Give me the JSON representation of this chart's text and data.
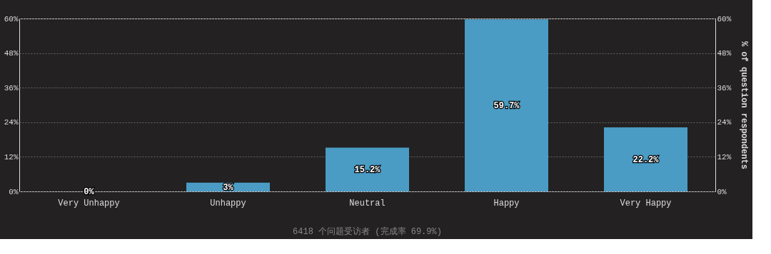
{
  "chart_data": {
    "type": "bar",
    "categories": [
      "Very Unhappy",
      "Unhappy",
      "Neutral",
      "Happy",
      "Very Happy"
    ],
    "values": [
      0,
      3,
      15.2,
      59.7,
      22.2
    ],
    "value_labels": [
      "0%",
      "3%",
      "15.2%",
      "59.7%",
      "22.2%"
    ],
    "color": "#4a9cc4",
    "ylim": [
      0,
      60
    ],
    "yticks": [
      {
        "value": 0,
        "label": "0%"
      },
      {
        "value": 12,
        "label": "12%"
      },
      {
        "value": 24,
        "label": "24%"
      },
      {
        "value": 36,
        "label": "36%"
      },
      {
        "value": 48,
        "label": "48%"
      },
      {
        "value": 60,
        "label": "60%"
      }
    ],
    "y2lim": [
      0,
      60
    ],
    "y2ticks": [
      {
        "value": 0,
        "label": "0%"
      },
      {
        "value": 12,
        "label": "12%"
      },
      {
        "value": 24,
        "label": "24%"
      },
      {
        "value": 36,
        "label": "36%"
      },
      {
        "value": 48,
        "label": "48%"
      },
      {
        "value": 60,
        "label": "60%"
      }
    ],
    "y2label": "% of question respondents",
    "grid": "y",
    "annotations": [
      "6418 个问题受访者 (完成率 69.9%)"
    ]
  }
}
